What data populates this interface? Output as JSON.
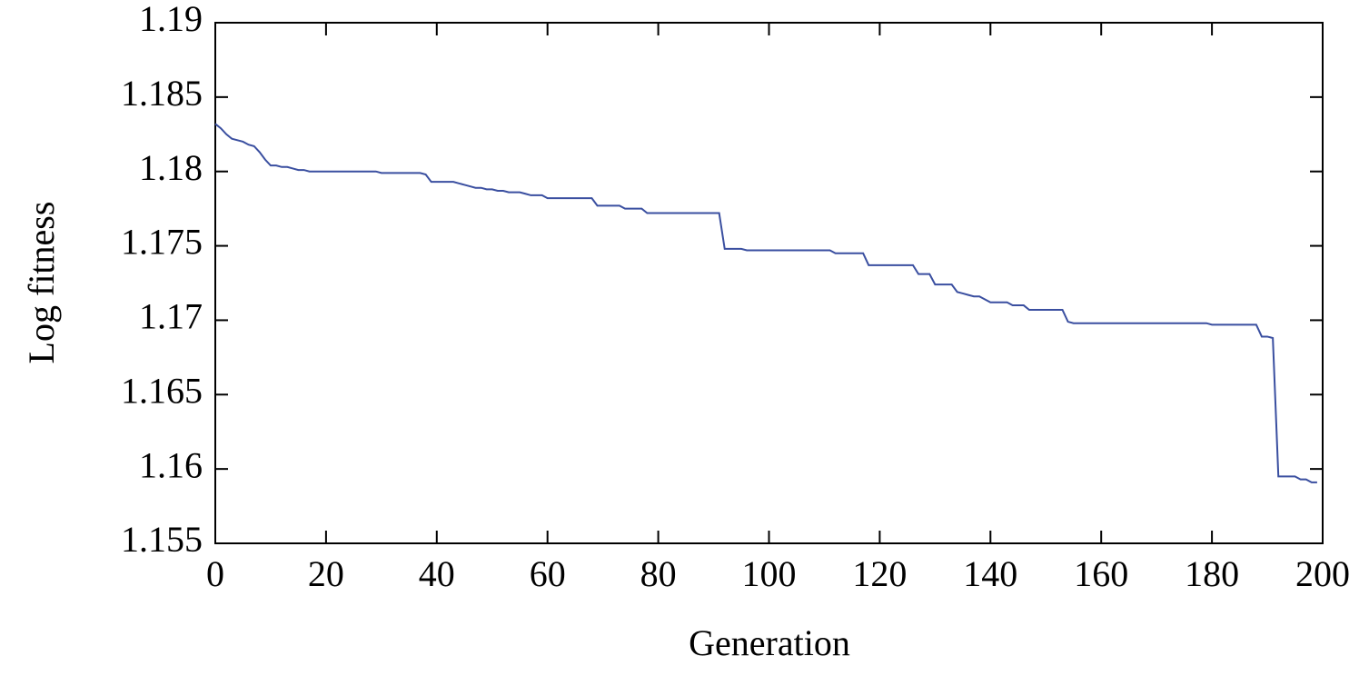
{
  "chart_data": {
    "type": "line",
    "x_label": "Generation",
    "y_label": "Log fitness",
    "x": [
      0,
      1,
      2,
      3,
      4,
      5,
      6,
      7,
      8,
      9,
      10,
      11,
      12,
      13,
      14,
      15,
      16,
      17,
      18,
      19,
      20,
      21,
      22,
      23,
      24,
      25,
      26,
      27,
      28,
      29,
      30,
      31,
      32,
      33,
      34,
      35,
      36,
      37,
      38,
      39,
      40,
      41,
      42,
      43,
      44,
      45,
      46,
      47,
      48,
      49,
      50,
      51,
      52,
      53,
      54,
      55,
      56,
      57,
      58,
      59,
      60,
      61,
      62,
      63,
      64,
      65,
      66,
      67,
      68,
      69,
      70,
      71,
      72,
      73,
      74,
      75,
      76,
      77,
      78,
      79,
      80,
      81,
      82,
      83,
      84,
      85,
      86,
      87,
      88,
      89,
      90,
      91,
      92,
      93,
      94,
      95,
      96,
      97,
      98,
      99,
      100,
      101,
      102,
      103,
      104,
      105,
      106,
      107,
      108,
      109,
      110,
      111,
      112,
      113,
      114,
      115,
      116,
      117,
      118,
      119,
      120,
      121,
      122,
      123,
      124,
      125,
      126,
      127,
      128,
      129,
      130,
      131,
      132,
      133,
      134,
      135,
      136,
      137,
      138,
      139,
      140,
      141,
      142,
      143,
      144,
      145,
      146,
      147,
      148,
      149,
      150,
      151,
      152,
      153,
      154,
      155,
      156,
      157,
      158,
      159,
      160,
      161,
      162,
      163,
      164,
      165,
      166,
      167,
      168,
      169,
      170,
      171,
      172,
      173,
      174,
      175,
      176,
      177,
      178,
      179,
      180,
      181,
      182,
      183,
      184,
      185,
      186,
      187,
      188,
      189,
      190,
      191,
      192,
      193,
      194,
      195,
      196,
      197,
      198,
      199
    ],
    "series": [
      {
        "color": "#3a4fa0",
        "values": [
          1.1832,
          1.1829,
          1.1825,
          1.1822,
          1.1821,
          1.182,
          1.1818,
          1.1817,
          1.1813,
          1.1808,
          1.1804,
          1.1804,
          1.1803,
          1.1803,
          1.1802,
          1.1801,
          1.1801,
          1.18,
          1.18,
          1.18,
          1.18,
          1.18,
          1.18,
          1.18,
          1.18,
          1.18,
          1.18,
          1.18,
          1.18,
          1.18,
          1.1799,
          1.1799,
          1.1799,
          1.1799,
          1.1799,
          1.1799,
          1.1799,
          1.1799,
          1.1798,
          1.1793,
          1.1793,
          1.1793,
          1.1793,
          1.1793,
          1.1792,
          1.1791,
          1.179,
          1.1789,
          1.1789,
          1.1788,
          1.1788,
          1.1787,
          1.1787,
          1.1786,
          1.1786,
          1.1786,
          1.1785,
          1.1784,
          1.1784,
          1.1784,
          1.1782,
          1.1782,
          1.1782,
          1.1782,
          1.1782,
          1.1782,
          1.1782,
          1.1782,
          1.1782,
          1.1777,
          1.1777,
          1.1777,
          1.1777,
          1.1777,
          1.1775,
          1.1775,
          1.1775,
          1.1775,
          1.1772,
          1.1772,
          1.1772,
          1.1772,
          1.1772,
          1.1772,
          1.1772,
          1.1772,
          1.1772,
          1.1772,
          1.1772,
          1.1772,
          1.1772,
          1.1772,
          1.1748,
          1.1748,
          1.1748,
          1.1748,
          1.1747,
          1.1747,
          1.1747,
          1.1747,
          1.1747,
          1.1747,
          1.1747,
          1.1747,
          1.1747,
          1.1747,
          1.1747,
          1.1747,
          1.1747,
          1.1747,
          1.1747,
          1.1747,
          1.1745,
          1.1745,
          1.1745,
          1.1745,
          1.1745,
          1.1745,
          1.1737,
          1.1737,
          1.1737,
          1.1737,
          1.1737,
          1.1737,
          1.1737,
          1.1737,
          1.1737,
          1.1731,
          1.1731,
          1.1731,
          1.1724,
          1.1724,
          1.1724,
          1.1724,
          1.1719,
          1.1718,
          1.1717,
          1.1716,
          1.1716,
          1.1714,
          1.1712,
          1.1712,
          1.1712,
          1.1712,
          1.171,
          1.171,
          1.171,
          1.1707,
          1.1707,
          1.1707,
          1.1707,
          1.1707,
          1.1707,
          1.1707,
          1.1699,
          1.1698,
          1.1698,
          1.1698,
          1.1698,
          1.1698,
          1.1698,
          1.1698,
          1.1698,
          1.1698,
          1.1698,
          1.1698,
          1.1698,
          1.1698,
          1.1698,
          1.1698,
          1.1698,
          1.1698,
          1.1698,
          1.1698,
          1.1698,
          1.1698,
          1.1698,
          1.1698,
          1.1698,
          1.1698,
          1.1697,
          1.1697,
          1.1697,
          1.1697,
          1.1697,
          1.1697,
          1.1697,
          1.1697,
          1.1697,
          1.1689,
          1.1689,
          1.1688,
          1.1595,
          1.1595,
          1.1595,
          1.1595,
          1.1593,
          1.1593,
          1.1591,
          1.1591
        ]
      }
    ],
    "xlim": [
      0,
      200
    ],
    "xticks": [
      0,
      20,
      40,
      60,
      80,
      100,
      120,
      140,
      160,
      180,
      200
    ],
    "ylim": [
      1.155,
      1.19
    ],
    "yticks": [
      1.155,
      1.16,
      1.165,
      1.17,
      1.175,
      1.18,
      1.185,
      1.19
    ],
    "grid": false
  }
}
